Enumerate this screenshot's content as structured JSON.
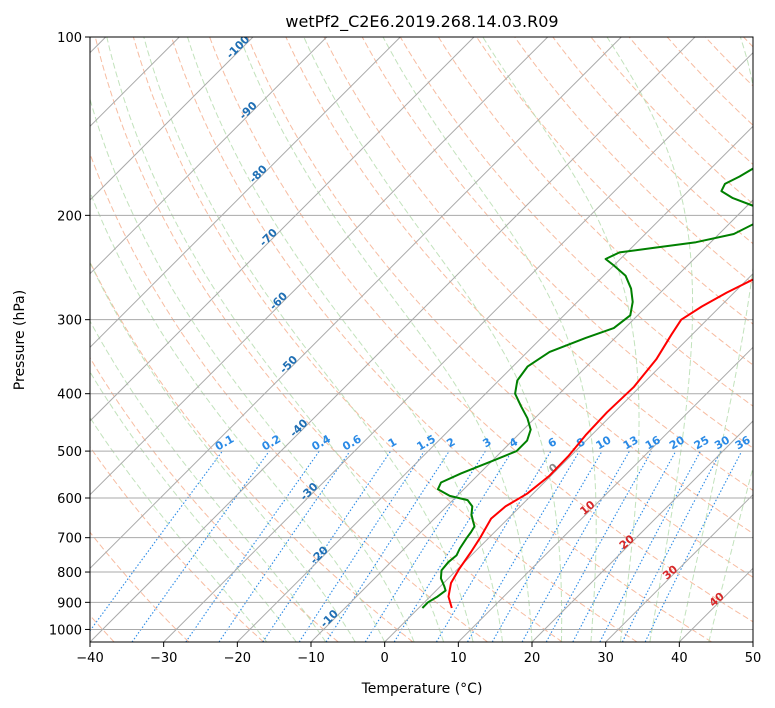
{
  "chart_data": {
    "type": "line",
    "title": "wetPf2_C2E6.2019.268.14.03.R09",
    "xlabel": "Temperature (°C)",
    "ylabel": "Pressure (hPa)",
    "xlim": [
      -40,
      50
    ],
    "ylim": [
      1050,
      100
    ],
    "y_scale": "log",
    "x_ticks": [
      "−40",
      "−30",
      "−20",
      "−10",
      "0",
      "10",
      "20",
      "30",
      "40",
      "50"
    ],
    "y_ticks": [
      "100",
      "200",
      "300",
      "400",
      "500",
      "600",
      "700",
      "800",
      "900",
      "1000"
    ],
    "grid": true,
    "skew": true,
    "series": [
      {
        "color": "#ff0000",
        "points": [
          [
            4.5,
            920
          ],
          [
            2.5,
            880
          ],
          [
            1.0,
            835
          ],
          [
            0.2,
            790
          ],
          [
            -0.5,
            740
          ],
          [
            -1.2,
            700
          ],
          [
            -2.3,
            650
          ],
          [
            -2.0,
            620
          ],
          [
            -0.8,
            590
          ],
          [
            -0.2,
            550
          ],
          [
            -0.3,
            510
          ],
          [
            -0.8,
            470
          ],
          [
            -1.0,
            430
          ],
          [
            -0.8,
            390
          ],
          [
            -1.5,
            350
          ],
          [
            -2.8,
            318
          ],
          [
            -3.5,
            300
          ],
          [
            -2.5,
            285
          ],
          [
            -1.0,
            270
          ],
          [
            1.0,
            255
          ],
          [
            2.5,
            242
          ],
          [
            4.0,
            228
          ],
          [
            5.2,
            215
          ],
          [
            6.5,
            205
          ],
          [
            8.5,
            195
          ],
          [
            11.0,
            185
          ],
          [
            13.5,
            175
          ],
          [
            16.0,
            160
          ],
          [
            18.5,
            145
          ],
          [
            20.0,
            133
          ],
          [
            21.5,
            124
          ],
          [
            23.5,
            116
          ],
          [
            26.0,
            108
          ],
          [
            27.0,
            100
          ]
        ]
      },
      {
        "color": "#008000",
        "points": [
          [
            0.5,
            920
          ],
          [
            0.5,
            900
          ],
          [
            1.0,
            880
          ],
          [
            1.3,
            860
          ],
          [
            0.5,
            845
          ],
          [
            -1.0,
            820
          ],
          [
            -2.0,
            795
          ],
          [
            -2.2,
            770
          ],
          [
            -2.0,
            750
          ],
          [
            -2.5,
            730
          ],
          [
            -3.0,
            700
          ],
          [
            -3.2,
            685
          ],
          [
            -3.5,
            670
          ],
          [
            -4.5,
            655
          ],
          [
            -5.5,
            640
          ],
          [
            -6.5,
            620
          ],
          [
            -8.0,
            605
          ],
          [
            -11.0,
            595
          ],
          [
            -13.5,
            580
          ],
          [
            -14.0,
            565
          ],
          [
            -12.5,
            545
          ],
          [
            -10.0,
            520
          ],
          [
            -8.0,
            500
          ],
          [
            -8.0,
            480
          ],
          [
            -9.0,
            460
          ],
          [
            -11.0,
            440
          ],
          [
            -13.5,
            420
          ],
          [
            -16.0,
            400
          ],
          [
            -17.5,
            380
          ],
          [
            -18.0,
            360
          ],
          [
            -17.0,
            340
          ],
          [
            -14.0,
            322
          ],
          [
            -11.5,
            310
          ],
          [
            -11.0,
            295
          ],
          [
            -12.5,
            280
          ],
          [
            -14.5,
            266
          ],
          [
            -17.0,
            253
          ],
          [
            -20.0,
            243
          ],
          [
            -22.0,
            237
          ],
          [
            -21.0,
            231
          ],
          [
            -17.0,
            227
          ],
          [
            -12.0,
            222
          ],
          [
            -8.0,
            215
          ],
          [
            -6.5,
            206
          ],
          [
            -7.0,
            199
          ],
          [
            -9.0,
            193
          ],
          [
            -13.0,
            187
          ],
          [
            -15.5,
            182
          ],
          [
            -16.0,
            177
          ],
          [
            -15.0,
            172
          ],
          [
            -14.0,
            165
          ],
          [
            -13.0,
            155
          ],
          [
            -12.5,
            145
          ],
          [
            -12.0,
            135
          ],
          [
            -10.5,
            126
          ],
          [
            -9.0,
            118
          ],
          [
            -7.5,
            111
          ],
          [
            -5.0,
            104
          ],
          [
            -3.0,
            100
          ]
        ]
      }
    ],
    "mixing_ratio_labels": [
      "0.1",
      "0.2",
      "0.4",
      "0.6",
      "1",
      "1.5",
      "2",
      "3",
      "4",
      "6",
      "8",
      "10",
      "13",
      "16",
      "20",
      "25",
      "30",
      "36"
    ],
    "dry_adiabat_labels": [
      "-100",
      "-90",
      "-80",
      "-70",
      "-60",
      "-50",
      "-40",
      "-30",
      "-20",
      "-10"
    ],
    "moist_adiabat_labels": [
      "0",
      "10",
      "20",
      "30",
      "40"
    ],
    "colors": {
      "temperature": "#ff0000",
      "dewpoint": "#008000",
      "isotherm": "#aaaaaa",
      "dry_adiabat": "#f4a582",
      "moist_adiabat": "#b7ddb0",
      "mixing_ratio": "#2a8ae6",
      "dry_label": "#1f6fb4",
      "moist_label": "#d62728"
    }
  }
}
